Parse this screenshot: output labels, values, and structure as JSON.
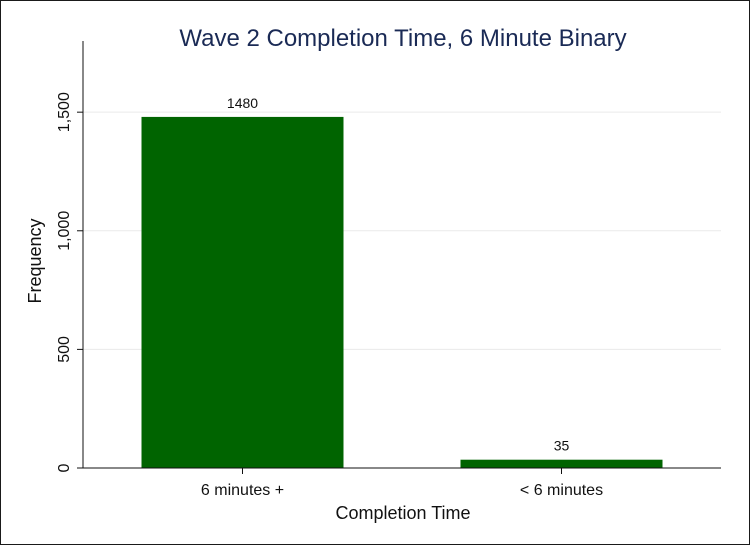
{
  "chart_data": {
    "type": "bar",
    "title": "Wave 2 Completion Time, 6 Minute Binary",
    "xlabel": "Completion Time",
    "ylabel": "Frequency",
    "categories": [
      "6 minutes +",
      "< 6 minutes"
    ],
    "values": [
      1480,
      35
    ],
    "data_labels": [
      "1480",
      "35"
    ],
    "ylim": [
      0,
      1800
    ],
    "yticks": [
      0,
      500,
      1000,
      1500
    ],
    "ytick_labels": [
      "0",
      "500",
      "1,000",
      "1,500"
    ],
    "grid": true,
    "bar_color": "#006400",
    "grid_color": "#eaeaea"
  }
}
